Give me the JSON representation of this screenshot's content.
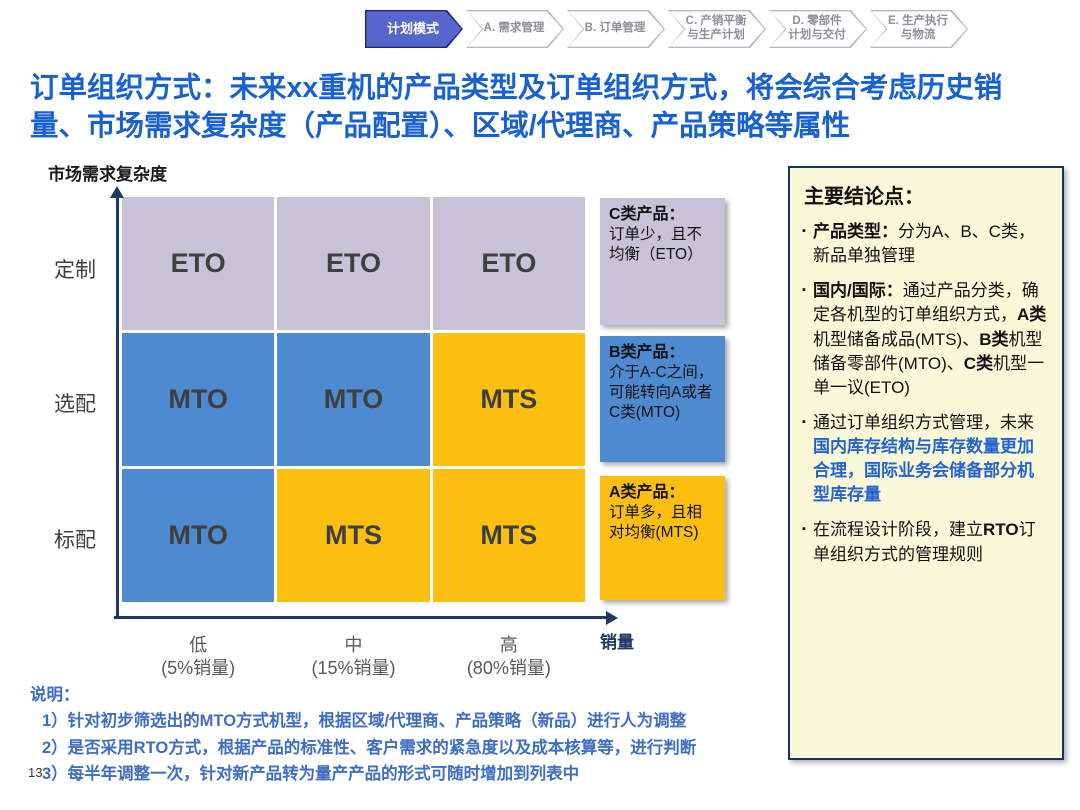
{
  "tabs": [
    {
      "lines": [
        "计划模式"
      ],
      "active": true
    },
    {
      "lines": [
        "A. 需求管理"
      ],
      "active": false
    },
    {
      "lines": [
        "B. 订单管理"
      ],
      "active": false
    },
    {
      "lines": [
        "C. 产销平衡",
        "与生产计划"
      ],
      "active": false
    },
    {
      "lines": [
        "D. 零部件",
        "计划与交付"
      ],
      "active": false
    },
    {
      "lines": [
        "E. 生产执行",
        "与物流"
      ],
      "active": false
    }
  ],
  "title": "订单组织方式：未来xx重机的产品类型及订单组织方式，将会综合考虑历史销量、市场需求复杂度（产品配置）、区域/代理商、产品策略等属性",
  "matrix": {
    "y_axis_title": "市场需求复杂度",
    "x_axis_title": "销量",
    "row_labels": [
      "定制",
      "选配",
      "标配"
    ],
    "col_labels": [
      {
        "line1": "低",
        "line2": "(5%销量)"
      },
      {
        "line1": "中",
        "line2": "(15%销量)"
      },
      {
        "line1": "高",
        "line2": "(80%销量)"
      }
    ],
    "cells": [
      [
        {
          "label": "ETO",
          "bg": "#c8c2d8"
        },
        {
          "label": "ETO",
          "bg": "#c8c2d8"
        },
        {
          "label": "ETO",
          "bg": "#c8c2d8"
        }
      ],
      [
        {
          "label": "MTO",
          "bg": "#4e8ad0"
        },
        {
          "label": "MTO",
          "bg": "#4e8ad0"
        },
        {
          "label": "MTS",
          "bg": "#fcbf10"
        }
      ],
      [
        {
          "label": "MTO",
          "bg": "#4e8ad0"
        },
        {
          "label": "MTS",
          "bg": "#fcbf10"
        },
        {
          "label": "MTS",
          "bg": "#fcbf10"
        }
      ]
    ]
  },
  "callouts": [
    {
      "title": "C类产品：",
      "body": "订单少，且不均衡（ETO）",
      "bg": "#c8c2d8"
    },
    {
      "title": "B类产品：",
      "body": "介于A-C之间，可能转向A或者C类(MTO)",
      "bg": "#4e8ad0"
    },
    {
      "title": "A类产品：",
      "body": "订单多，且相对均衡(MTS)",
      "bg": "#fcbf10"
    }
  ],
  "panel": {
    "title": "主要结论点：",
    "bullet_marker": "▪",
    "bullets": [
      [
        {
          "t": "产品类型：",
          "b": true
        },
        {
          "t": "分为A、B、C类，新品单独管理",
          "b": false
        }
      ],
      [
        {
          "t": "国内/国际：",
          "b": true
        },
        {
          "t": "通过产品分类，确定各机型的订单组织方式，",
          "b": false
        },
        {
          "t": "A类",
          "b": true
        },
        {
          "t": "机型储备成品(MTS)、",
          "b": false
        },
        {
          "t": "B类",
          "b": true
        },
        {
          "t": "机型储备零部件(MTO)、",
          "b": false
        },
        {
          "t": "C类",
          "b": true
        },
        {
          "t": "机型一单一议(ETO)",
          "b": false
        }
      ],
      [
        {
          "t": "通过订单组织方式管理，未来",
          "b": false
        },
        {
          "t": "国内库存结构与库存数量更加合理，国际业务会储备部分机型库存量",
          "b": true,
          "c": "#2464ce"
        }
      ],
      [
        {
          "t": "在流程设计阶段，建立",
          "b": false
        },
        {
          "t": "RTO",
          "b": true
        },
        {
          "t": "订单组织方式的管理规则",
          "b": false
        }
      ]
    ]
  },
  "notes": {
    "heading": "说明：",
    "items": [
      "1）针对初步筛选出的MTO方式机型，根据区域/代理商、产品策略（新品）进行人为调整",
      "2）是否采用RTO方式，根据产品的标准性、客户需求的紧急度以及成本核算等，进行判断",
      "3）每半年调整一次，针对新产品转为量产产品的形式可随时增加到列表中"
    ]
  },
  "page_number": "13",
  "colors": {
    "title_blue": "#1761d2",
    "notes_blue": "#3e6ec1",
    "highlight_blue": "#2464ce",
    "axis_navy": "#1f3864",
    "eto_purple": "#c8c2d8",
    "mto_blue": "#4e8ad0",
    "mts_yellow": "#fcbf10",
    "panel_bg": "#faf8d7",
    "panel_border": "#17365d",
    "tab_active_fill": "#5666cd",
    "tab_active_border": "#1e2a78"
  }
}
